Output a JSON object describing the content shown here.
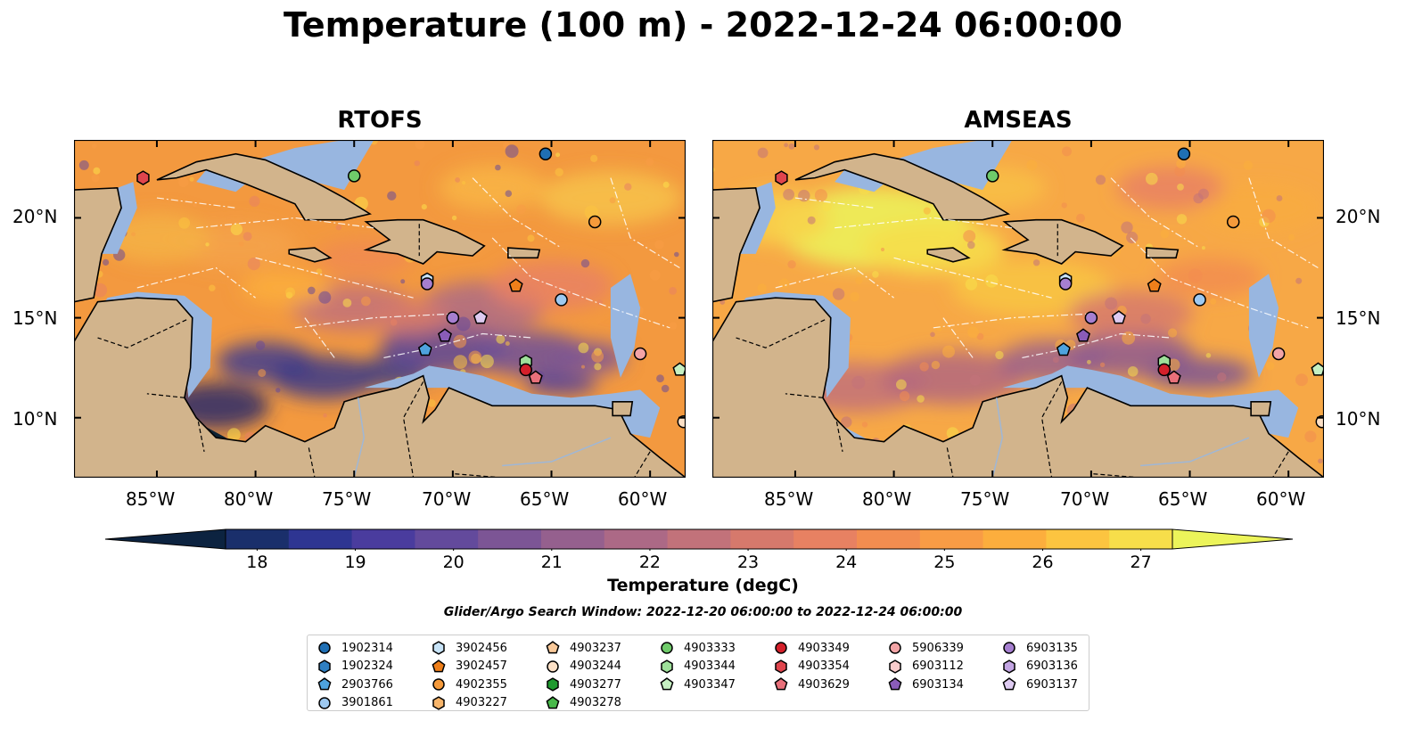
{
  "title": "Temperature (100 m) - 2022-12-24 06:00:00",
  "panels": [
    {
      "title": "RTOFS",
      "style": "rtofs"
    },
    {
      "title": "AMSEAS",
      "style": "amseas"
    }
  ],
  "lat_ticks": [
    "20°N",
    "15°N",
    "10°N"
  ],
  "lon_ticks": [
    "85°W",
    "80°W",
    "75°W",
    "70°W",
    "65°W",
    "60°W"
  ],
  "colorbar": {
    "label": "Temperature (degC)",
    "ticks": [
      "18",
      "19",
      "20",
      "21",
      "22",
      "23",
      "24",
      "25",
      "26",
      "27"
    ],
    "min": 18,
    "max": 27,
    "colors": [
      "#0c2340",
      "#1a2f6b",
      "#2e3592",
      "#4a3c9e",
      "#634a9c",
      "#7c5595",
      "#95608e",
      "#ac6986",
      "#c2727a",
      "#d6796c",
      "#e78162",
      "#f28d50",
      "#f89c45",
      "#fcae3d",
      "#fcc440",
      "#f7de4a",
      "#ecf45a"
    ]
  },
  "search_window": "Glider/Argo Search Window: 2022-12-20 06:00:00 to 2022-12-24 06:00:00",
  "legend": [
    {
      "id": "1902314",
      "color": "#1f6fb4",
      "shape": "circle"
    },
    {
      "id": "1902324",
      "color": "#2f7fc1",
      "shape": "hexagon"
    },
    {
      "id": "2903766",
      "color": "#4ea3de",
      "shape": "pentagon"
    },
    {
      "id": "3901861",
      "color": "#9ec9f0",
      "shape": "circle"
    },
    {
      "id": "3902456",
      "color": "#c8e4f8",
      "shape": "hexagon"
    },
    {
      "id": "3902457",
      "color": "#ef7f1a",
      "shape": "pentagon"
    },
    {
      "id": "4902355",
      "color": "#f59a3b",
      "shape": "circle"
    },
    {
      "id": "4903227",
      "color": "#f7b56b",
      "shape": "hexagon"
    },
    {
      "id": "4903237",
      "color": "#f9c99a",
      "shape": "pentagon"
    },
    {
      "id": "4903244",
      "color": "#fce0c6",
      "shape": "circle"
    },
    {
      "id": "4903277",
      "color": "#1f9a2f",
      "shape": "hexagon"
    },
    {
      "id": "4903278",
      "color": "#48b84a",
      "shape": "pentagon"
    },
    {
      "id": "4903333",
      "color": "#6fcb6a",
      "shape": "circle"
    },
    {
      "id": "4903344",
      "color": "#9ee09a",
      "shape": "hexagon"
    },
    {
      "id": "4903347",
      "color": "#c6f0c2",
      "shape": "pentagon"
    },
    {
      "id": "4903349",
      "color": "#d4202a",
      "shape": "circle"
    },
    {
      "id": "4903354",
      "color": "#e0454d",
      "shape": "hexagon"
    },
    {
      "id": "4903629",
      "color": "#e8707a",
      "shape": "pentagon"
    },
    {
      "id": "5906339",
      "color": "#f3a4a6",
      "shape": "circle"
    },
    {
      "id": "6903112",
      "color": "#f9cccc",
      "shape": "hexagon"
    },
    {
      "id": "6903134",
      "color": "#8a5cb8",
      "shape": "pentagon"
    },
    {
      "id": "6903135",
      "color": "#a67fd0",
      "shape": "circle"
    },
    {
      "id": "6903136",
      "color": "#c3a5e3",
      "shape": "hexagon"
    },
    {
      "id": "6903137",
      "color": "#decbf1",
      "shape": "pentagon"
    }
  ],
  "colors": {
    "land": "#d2b48c",
    "shallow": "#98b6e0",
    "deep_cold": "#0d2233"
  }
}
